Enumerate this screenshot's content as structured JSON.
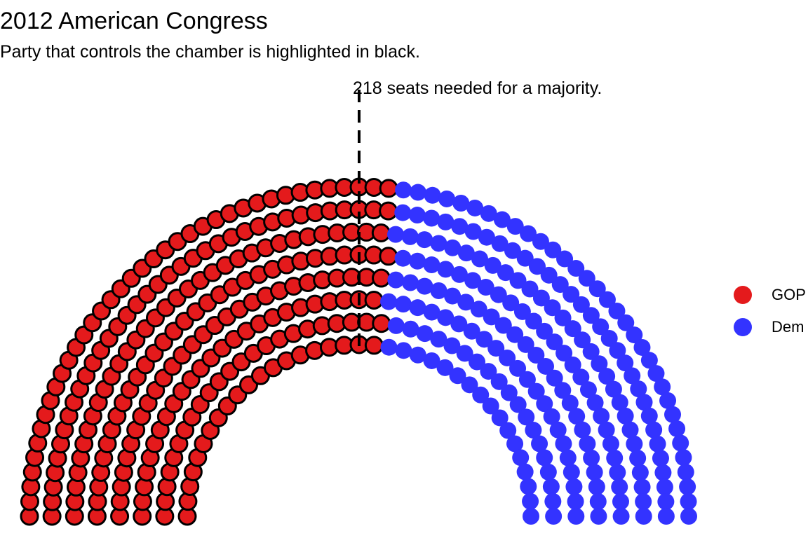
{
  "chart_data": {
    "type": "parliament",
    "title": "2012 American Congress",
    "subtitle": "Party that controls the chamber is highlighted in black.",
    "annotation": "218 seats needed for a majority.",
    "rows": 8,
    "majority_seats": 218,
    "controlling_party": "GOP",
    "series": [
      {
        "name": "GOP",
        "seats": 234,
        "color": "#E41A1C"
      },
      {
        "name": "Dem",
        "seats": 201,
        "color": "#3333FF"
      }
    ],
    "legend_position": "right"
  }
}
